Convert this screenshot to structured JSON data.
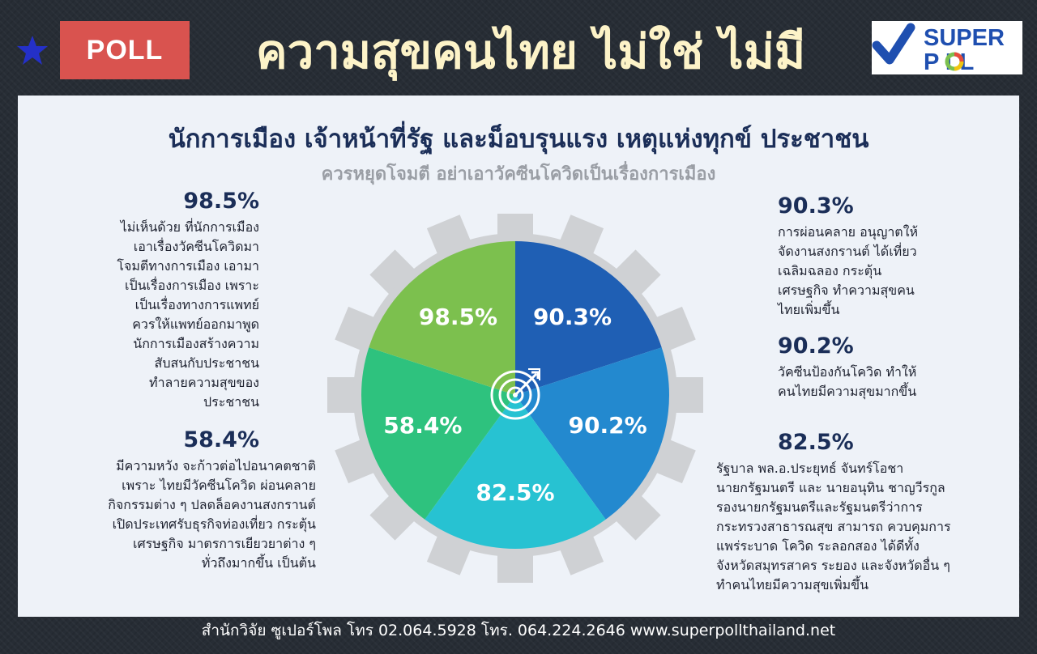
{
  "header": {
    "badge": "POLL",
    "title": "ความสุขคนไทย ไม่ใช่ ไม่มี",
    "logo_line1": "SUPER",
    "logo_line2": "P  LL"
  },
  "headline": "นักการเมือง เจ้าหน้าที่รัฐ และม็อบรุนแรง เหตุแห่งทุกข์ ประชาชน",
  "subheadline": "ควรหยุดโจมตี อย่าเอาวัคซีนโควิดเป็นเรื่องการเมือง",
  "left": [
    {
      "pct": "98.5%",
      "lines": [
        "ไม่เห็นด้วย ที่นักการเมือง",
        "เอาเรื่องวัคซีนโควิดมา",
        "โจมตีทางการเมือง เอามา",
        "เป็นเรื่องการเมือง เพราะ",
        "เป็นเรื่องทางการแพทย์",
        "ควรให้แพทย์ออกมาพูด",
        "นักการเมืองสร้างความ",
        "สับสนกับประชาชน",
        "ทำลายความสุขของ",
        "ประชาชน"
      ]
    },
    {
      "pct": "58.4%",
      "lines": [
        "มีความหวัง จะก้าวต่อไปอนาคตชาติ",
        "เพราะ ไทยมีวัคซีนโควิด ผ่อนคลาย",
        "กิจกรรมต่าง ๆ ปลดล็อคงานสงกรานต์",
        "เปิดประเทศรับธุรกิจท่องเที่ยว กระตุ้น",
        "เศรษฐกิจ มาตรการเยียวยาต่าง ๆ",
        "ทั่วถึงมากขึ้น เป็นต้น"
      ]
    }
  ],
  "right": [
    {
      "pct": "90.3%",
      "lines": [
        "การผ่อนคลาย อนุญาตให้",
        "จัดงานสงกรานต์ ได้เที่ยว",
        "เฉลิมฉลอง กระตุ้น",
        "เศรษฐกิจ ทำความสุขคน",
        "ไทยเพิ่มขึ้น"
      ]
    },
    {
      "pct": "90.2%",
      "lines": [
        "วัคซีนป้องกันโควิด ทำให้",
        "คนไทยมีความสุขมากขึ้น"
      ]
    },
    {
      "pct": "82.5%",
      "lines": [
        "รัฐบาล พล.อ.ประยุทธ์ จันทร์โอชา",
        "นายกรัฐมนตรี และ นายอนุทิน ชาญวีรกูล",
        "รองนายกรัฐมนตรีและรัฐมนตรีว่าการ",
        "กระทรวงสาธารณสุข สามารถ ควบคุมการ",
        "แพร่ระบาด โควิด ระลอกสอง ได้ดีทั้ง",
        "จังหวัดสมุทรสาคร ระยอง และจังหวัดอื่น ๆ",
        "ทำคนไทยมีความสุขเพิ่มขึ้น"
      ]
    }
  ],
  "chart_data": {
    "type": "pie",
    "slices": [
      {
        "label": "90.3%",
        "value": 90.3,
        "color": "#1f5fb4"
      },
      {
        "label": "90.2%",
        "value": 90.2,
        "color": "#2389cf"
      },
      {
        "label": "82.5%",
        "value": 82.5,
        "color": "#27c2d2"
      },
      {
        "label": "58.4%",
        "value": 58.4,
        "color": "#2ec27e"
      },
      {
        "label": "98.5%",
        "value": 98.5,
        "color": "#7cc04e"
      }
    ],
    "equal_sized_slices": true,
    "center_icon": "target-icon",
    "background_icon": "gear-icon"
  },
  "footer": "สำนักวิจัย ซูเปอร์โพล โทร 02.064.5928  โทร. 064.224.2646 www.superpollthailand.net"
}
